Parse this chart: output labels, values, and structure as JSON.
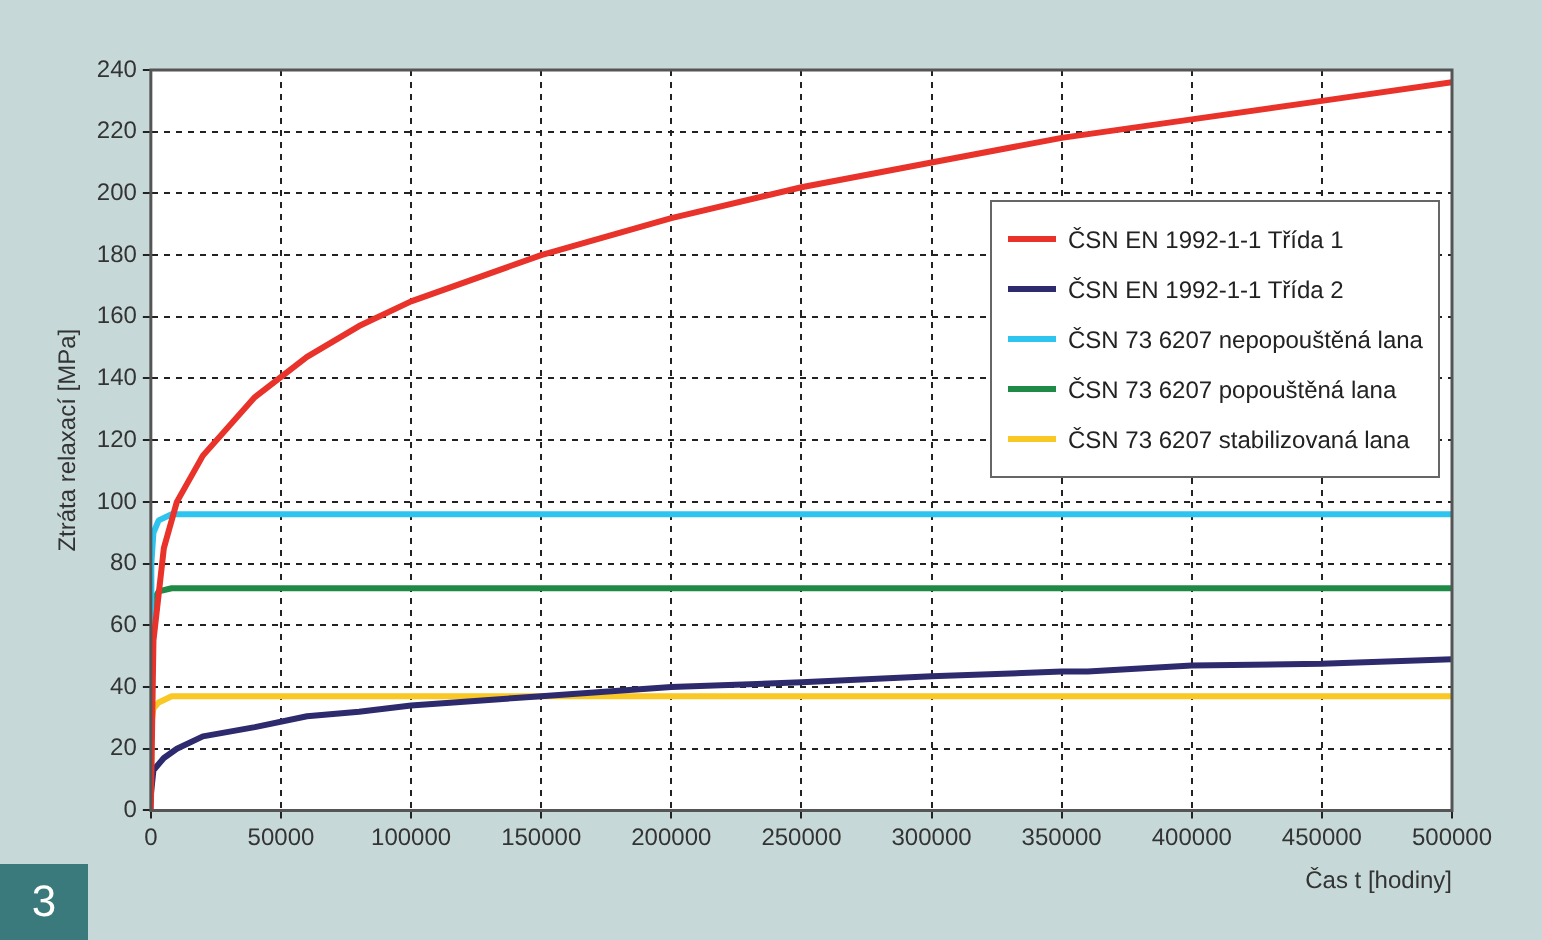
{
  "chart_data": {
    "type": "line",
    "xlabel": "Čas t [hodiny]",
    "ylabel": "Ztráta relaxací [MPa]",
    "annotations": [
      "3"
    ],
    "xlim": [
      0,
      500000
    ],
    "xticks": [
      0,
      50000,
      100000,
      150000,
      200000,
      250000,
      300000,
      350000,
      400000,
      450000,
      500000
    ],
    "ylim": [
      0,
      240
    ],
    "yticks": [
      0,
      20,
      40,
      60,
      80,
      100,
      120,
      140,
      160,
      180,
      200,
      220,
      240
    ],
    "grid": true,
    "legend": "top right",
    "marker": "none",
    "line_style": "solid",
    "series": [
      {
        "name": "ČSN EN 1992-1-1 Třída 1",
        "color": "#e8322a",
        "x": [
          0,
          1000,
          5000,
          10000,
          20000,
          40000,
          60000,
          80000,
          100000,
          150000,
          200000,
          250000,
          300000,
          350000,
          400000,
          450000,
          500000
        ],
        "values": [
          0,
          55,
          85,
          100,
          115,
          134,
          147,
          157,
          165,
          180,
          192,
          202,
          210,
          218,
          224,
          230,
          236
        ]
      },
      {
        "name": "ČSN EN 1992-1-1 Třída 2",
        "color": "#2e2a6e",
        "x": [
          0,
          1000,
          5000,
          10000,
          20000,
          40000,
          60000,
          80000,
          100000,
          150000,
          200000,
          250000,
          300000,
          350000,
          360000,
          400000,
          450000,
          500000
        ],
        "values": [
          5,
          13,
          17,
          20,
          24,
          27,
          30.5,
          32,
          34,
          37,
          40,
          41.5,
          43.5,
          45,
          45,
          47,
          47.5,
          49
        ]
      },
      {
        "name": "ČSN 73 6207 nepopouštěná lana",
        "color": "#2ec4f0",
        "x": [
          0,
          200,
          1000,
          3000,
          8000,
          500000
        ],
        "values": [
          60,
          80,
          90,
          94,
          96,
          96
        ]
      },
      {
        "name": "ČSN 73 6207 popouštěná lana",
        "color": "#1f8a45",
        "x": [
          0,
          200,
          1000,
          3000,
          8000,
          500000
        ],
        "values": [
          32,
          60,
          68,
          71,
          72,
          72
        ]
      },
      {
        "name": "ČSN 73 6207 stabilizovaná lana",
        "color": "#f9c824",
        "x": [
          0,
          200,
          1000,
          3000,
          8000,
          500000
        ],
        "values": [
          8,
          28,
          33,
          35,
          37,
          37
        ]
      }
    ]
  }
}
